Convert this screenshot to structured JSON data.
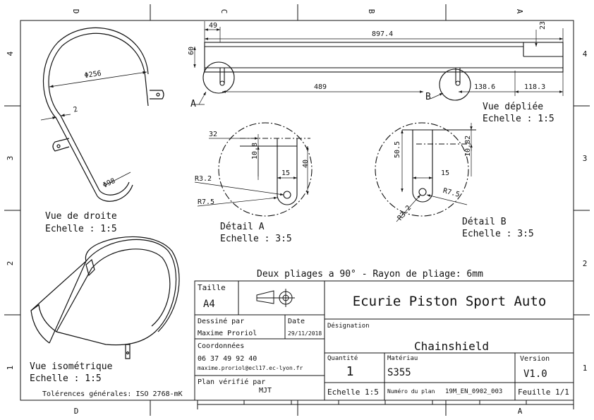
{
  "zones": {
    "columns": [
      "D",
      "C",
      "B",
      "A"
    ],
    "rows": [
      "4",
      "3",
      "2",
      "1"
    ]
  },
  "views": {
    "right": {
      "line1": "Vue de droite",
      "line2": "Echelle :  1:5"
    },
    "iso": {
      "line1": "Vue isométrique",
      "line2": "Echelle :  1:5"
    },
    "unfolded": {
      "line1": "Vue dépliée",
      "line2": "Echelle :  1:5"
    },
    "detail_a": {
      "line1": "Détail A",
      "line2": "Echelle :  3:5"
    },
    "detail_b": {
      "line1": "Détail B",
      "line2": "Echelle :  3:5"
    }
  },
  "dimensions": {
    "d256": "Φ256",
    "d98": "Φ98",
    "t2": "2",
    "d49": "49",
    "d897": "897.4",
    "d23": "23",
    "d60": "60",
    "d489": "489",
    "d138": "138.6",
    "d118": "118.3",
    "marker_a": "A",
    "marker_b": "B",
    "a32": "32",
    "a108": "10.8",
    "a15": "15",
    "a40": "40",
    "ar32": "R3.2",
    "ar75": "R7.5",
    "b505": "50.5",
    "b15": "15",
    "b1082": "10.82",
    "br75": "R7.5",
    "br32": "R3.2"
  },
  "note": "Deux pliages a 90° - Rayon de pliage: 6mm",
  "tolerances": "Tolérences générales: ISO 2768-mK",
  "title_block": {
    "taille_label": "Taille",
    "taille_value": "A4",
    "company": "Ecurie Piston Sport Auto",
    "drawn_by_label": "Dessiné par",
    "drawn_by": "Maxime Proriol",
    "date_label": "Date",
    "date": "29/11/2018",
    "designation_label": "Désignation",
    "designation": "Chainshield",
    "coords_label": "Coordonnées",
    "phone": "06 37 49 92 40",
    "email": "maxime.proriol@ecl17.ec-lyon.fr",
    "checked_label": "Plan vérifié par",
    "checked_by": "MJT",
    "qty_label": "Quantité",
    "qty": "1",
    "material_label": "Matériau",
    "material": "S355",
    "version_label": "Version",
    "version": "V1.0",
    "scale": "Echelle 1:5",
    "plan_no_label": "Numéro du plan",
    "plan_no": "19M_EN_0902_003",
    "sheet": "Feuille 1/1"
  }
}
